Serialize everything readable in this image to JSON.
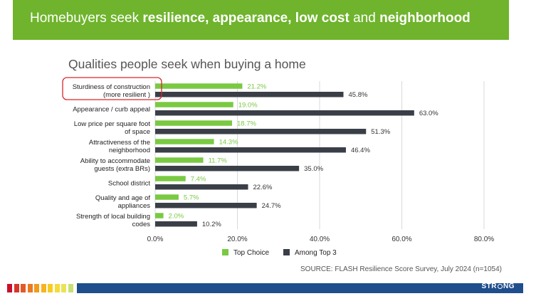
{
  "banner": {
    "title_parts": [
      "Homebuyers seek ",
      "resilience, appearance, low cost",
      " and ",
      "neighborhood"
    ]
  },
  "chart_data": {
    "type": "bar",
    "orientation": "horizontal",
    "title": "Qualities people seek when buying a home",
    "categories": [
      [
        "Sturdiness of construction",
        "(more resilient )"
      ],
      [
        "Appearance / curb appeal"
      ],
      [
        "Low price per square foot",
        "of space"
      ],
      [
        "Attractiveness of the",
        "neighborhood"
      ],
      [
        "Ability to accommodate",
        "guests (extra BRs)"
      ],
      [
        "School district"
      ],
      [
        "Quality and age of",
        "appliances"
      ],
      [
        "Strength of local building",
        "codes"
      ]
    ],
    "series": [
      {
        "name": "Top Choice",
        "color": "#7ac943",
        "values": [
          21.2,
          19.0,
          18.7,
          14.3,
          11.7,
          7.4,
          5.7,
          2.0
        ],
        "labels": [
          "21.2%",
          "19.0%",
          "18.7%",
          "14.3%",
          "11.7%",
          "7.4%",
          "5.7%",
          "2.0%"
        ]
      },
      {
        "name": "Among Top 3",
        "color": "#3a3f47",
        "values": [
          45.8,
          63.0,
          51.3,
          46.4,
          35.0,
          22.6,
          24.7,
          10.2
        ],
        "labels": [
          "45.8%",
          "63.0%",
          "51.3%",
          "46.4%",
          "35.0%",
          "22.6%",
          "24.7%",
          "10.2%"
        ]
      }
    ],
    "xlim": [
      0,
      80
    ],
    "xticks": [
      0,
      20,
      40,
      60,
      80
    ],
    "xtick_labels": [
      "0.0%",
      "20.0%",
      "40.0%",
      "60.0%",
      "80.0%"
    ],
    "grid": "vertical",
    "legend": "bottom",
    "highlight_category": 0,
    "highlight_color": "#d9262c"
  },
  "source": "SOURCE: FLASH Resilience Score Survey, July 2024 (n=1054)",
  "footer": {
    "stripe_colors": [
      "#c8102e",
      "#d8342a",
      "#e25a26",
      "#ea7a22",
      "#f19a20",
      "#f5b51f",
      "#f6cb25",
      "#f3dc3c",
      "#e9e35a",
      "#c9df72"
    ],
    "brand_parts": [
      "STR",
      "NG"
    ]
  }
}
